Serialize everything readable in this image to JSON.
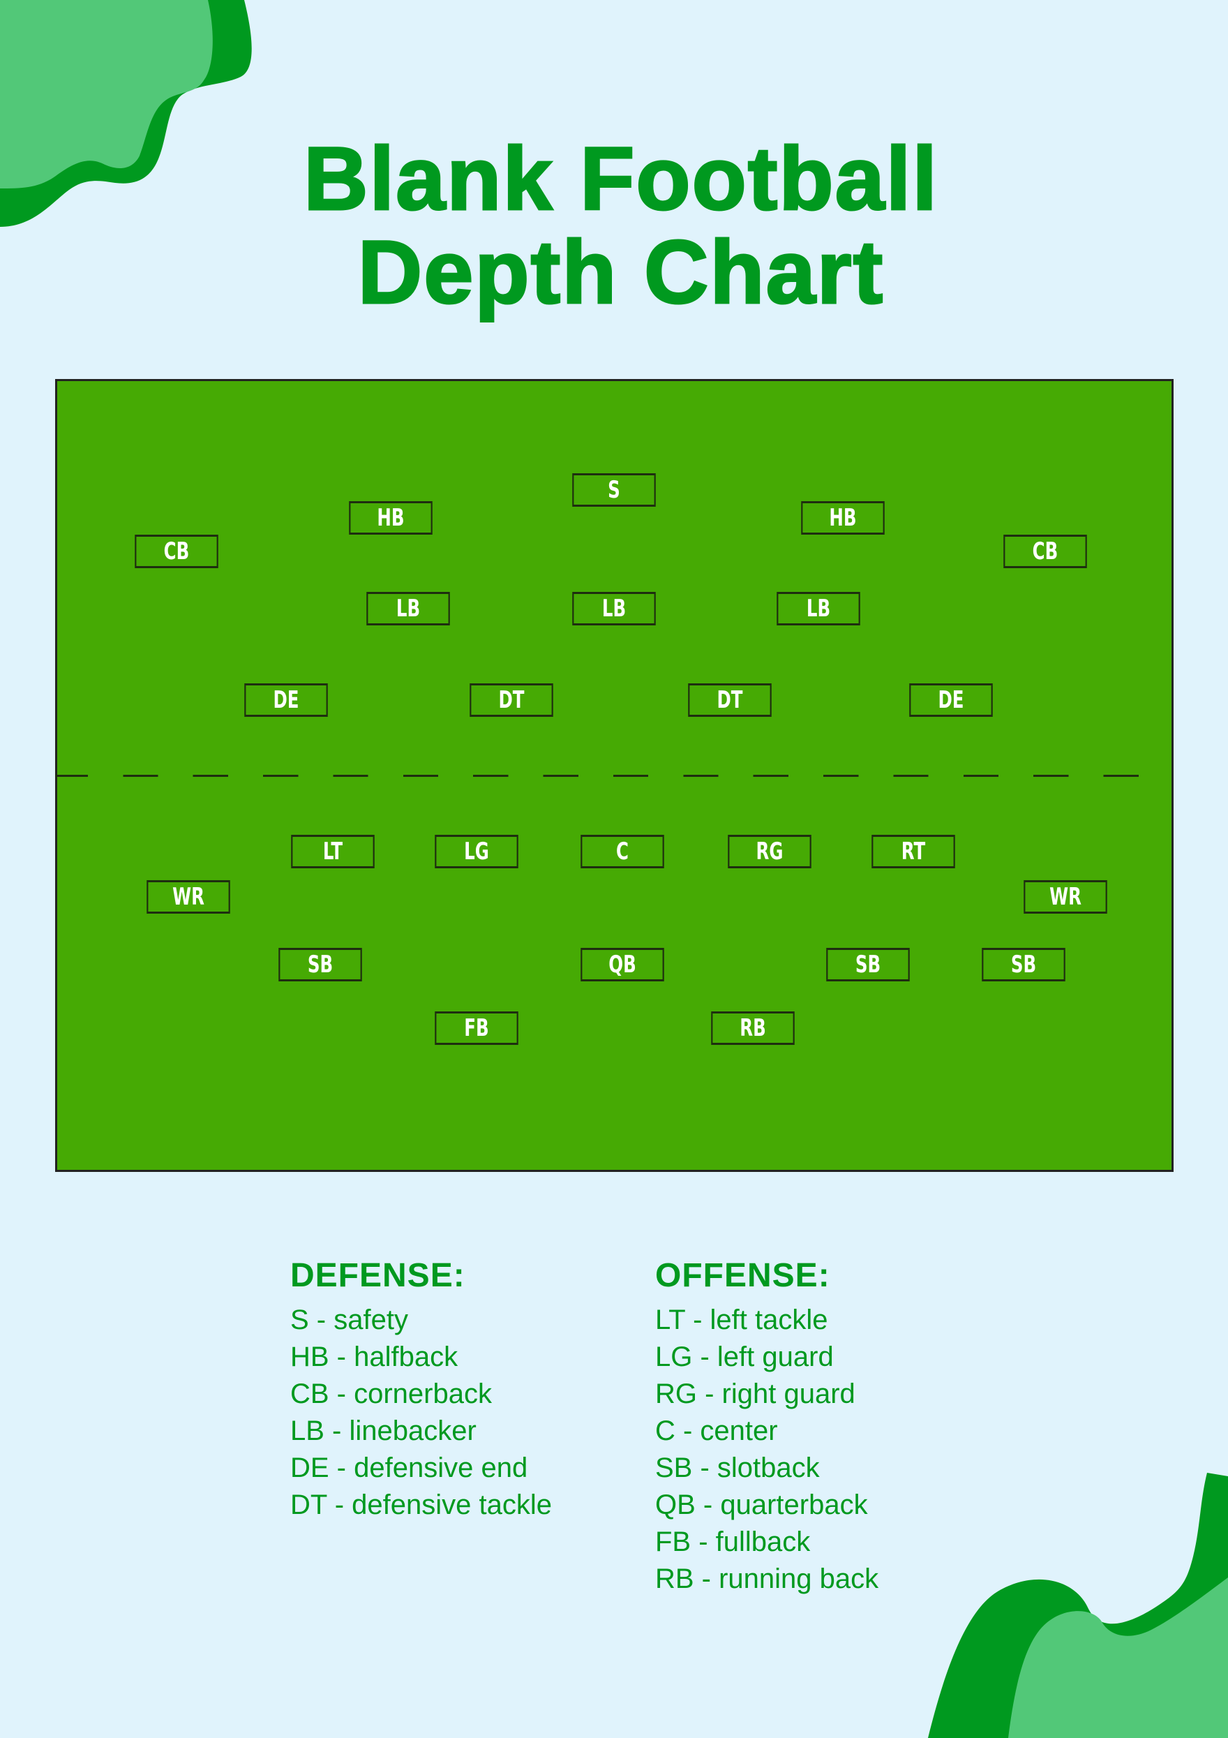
{
  "title": {
    "line1": "Blank Football",
    "line2": "Depth Chart"
  },
  "colors": {
    "background": "#e0f3fc",
    "accent": "#00991f",
    "accent_light": "#52c878",
    "field": "#46aa04",
    "box_border": "#1e2e10"
  },
  "field": {
    "defense": [
      {
        "id": "s",
        "label": "S"
      },
      {
        "id": "hb-left",
        "label": "HB"
      },
      {
        "id": "hb-right",
        "label": "HB"
      },
      {
        "id": "cb-left",
        "label": "CB"
      },
      {
        "id": "cb-right",
        "label": "CB"
      },
      {
        "id": "lb-left",
        "label": "LB"
      },
      {
        "id": "lb-middle",
        "label": "LB"
      },
      {
        "id": "lb-right",
        "label": "LB"
      },
      {
        "id": "de-left",
        "label": "DE"
      },
      {
        "id": "dt-left",
        "label": "DT"
      },
      {
        "id": "dt-right",
        "label": "DT"
      },
      {
        "id": "de-right",
        "label": "DE"
      }
    ],
    "offense": [
      {
        "id": "lt",
        "label": "LT"
      },
      {
        "id": "lg",
        "label": "LG"
      },
      {
        "id": "c",
        "label": "C"
      },
      {
        "id": "rg",
        "label": "RG"
      },
      {
        "id": "rt",
        "label": "RT"
      },
      {
        "id": "wr-left",
        "label": "WR"
      },
      {
        "id": "wr-right",
        "label": "WR"
      },
      {
        "id": "sb-left",
        "label": "SB"
      },
      {
        "id": "qb",
        "label": "QB"
      },
      {
        "id": "sb-right",
        "label": "SB"
      },
      {
        "id": "sb-far-right",
        "label": "SB"
      },
      {
        "id": "fb",
        "label": "FB"
      },
      {
        "id": "rb",
        "label": "RB"
      }
    ]
  },
  "legend": {
    "defense": {
      "heading": "DEFENSE:",
      "items": [
        "S - safety",
        "HB - halfback",
        "CB - cornerback",
        "LB - linebacker",
        "DE - defensive end",
        "DT - defensive tackle"
      ]
    },
    "offense": {
      "heading": "OFFENSE:",
      "items": [
        "LT - left tackle",
        "LG - left guard",
        "RG - right guard",
        "C - center",
        "SB - slotback",
        "QB - quarterback",
        "FB - fullback",
        "RB - running back"
      ]
    }
  }
}
